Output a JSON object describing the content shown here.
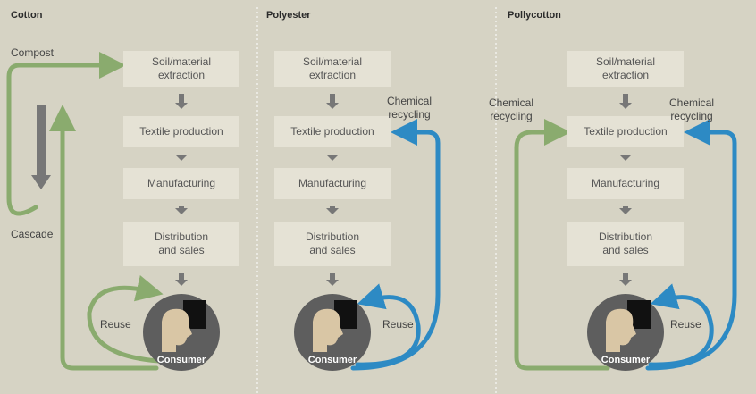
{
  "panels": [
    {
      "title": "Cotton",
      "stages": [
        [
          "Soil/material",
          "extraction"
        ],
        [
          "Textile production"
        ],
        [
          "Manufacturing"
        ],
        [
          "Distribution",
          "and sales"
        ]
      ],
      "consumer": "Consumer",
      "labels": [
        [
          "Compost"
        ],
        [
          "Cascade"
        ],
        [
          "Reuse"
        ]
      ]
    },
    {
      "title": "Polyester",
      "stages": [
        [
          "Soil/material",
          "extraction"
        ],
        [
          "Textile production"
        ],
        [
          "Manufacturing"
        ],
        [
          "Distribution",
          "and sales"
        ]
      ],
      "consumer": "Consumer",
      "labels": [
        [
          "Chemical",
          "recycling"
        ],
        [
          "Reuse"
        ]
      ]
    },
    {
      "title": "Pollycotton",
      "stages": [
        [
          "Soil/material",
          "extraction"
        ],
        [
          "Textile production"
        ],
        [
          "Manufacturing"
        ],
        [
          "Distribution",
          "and sales"
        ]
      ],
      "consumer": "Consumer",
      "labels": [
        [
          "Chemical",
          "recycling"
        ],
        [
          "Chemical",
          "recycling"
        ],
        [
          "Reuse"
        ]
      ]
    }
  ]
}
